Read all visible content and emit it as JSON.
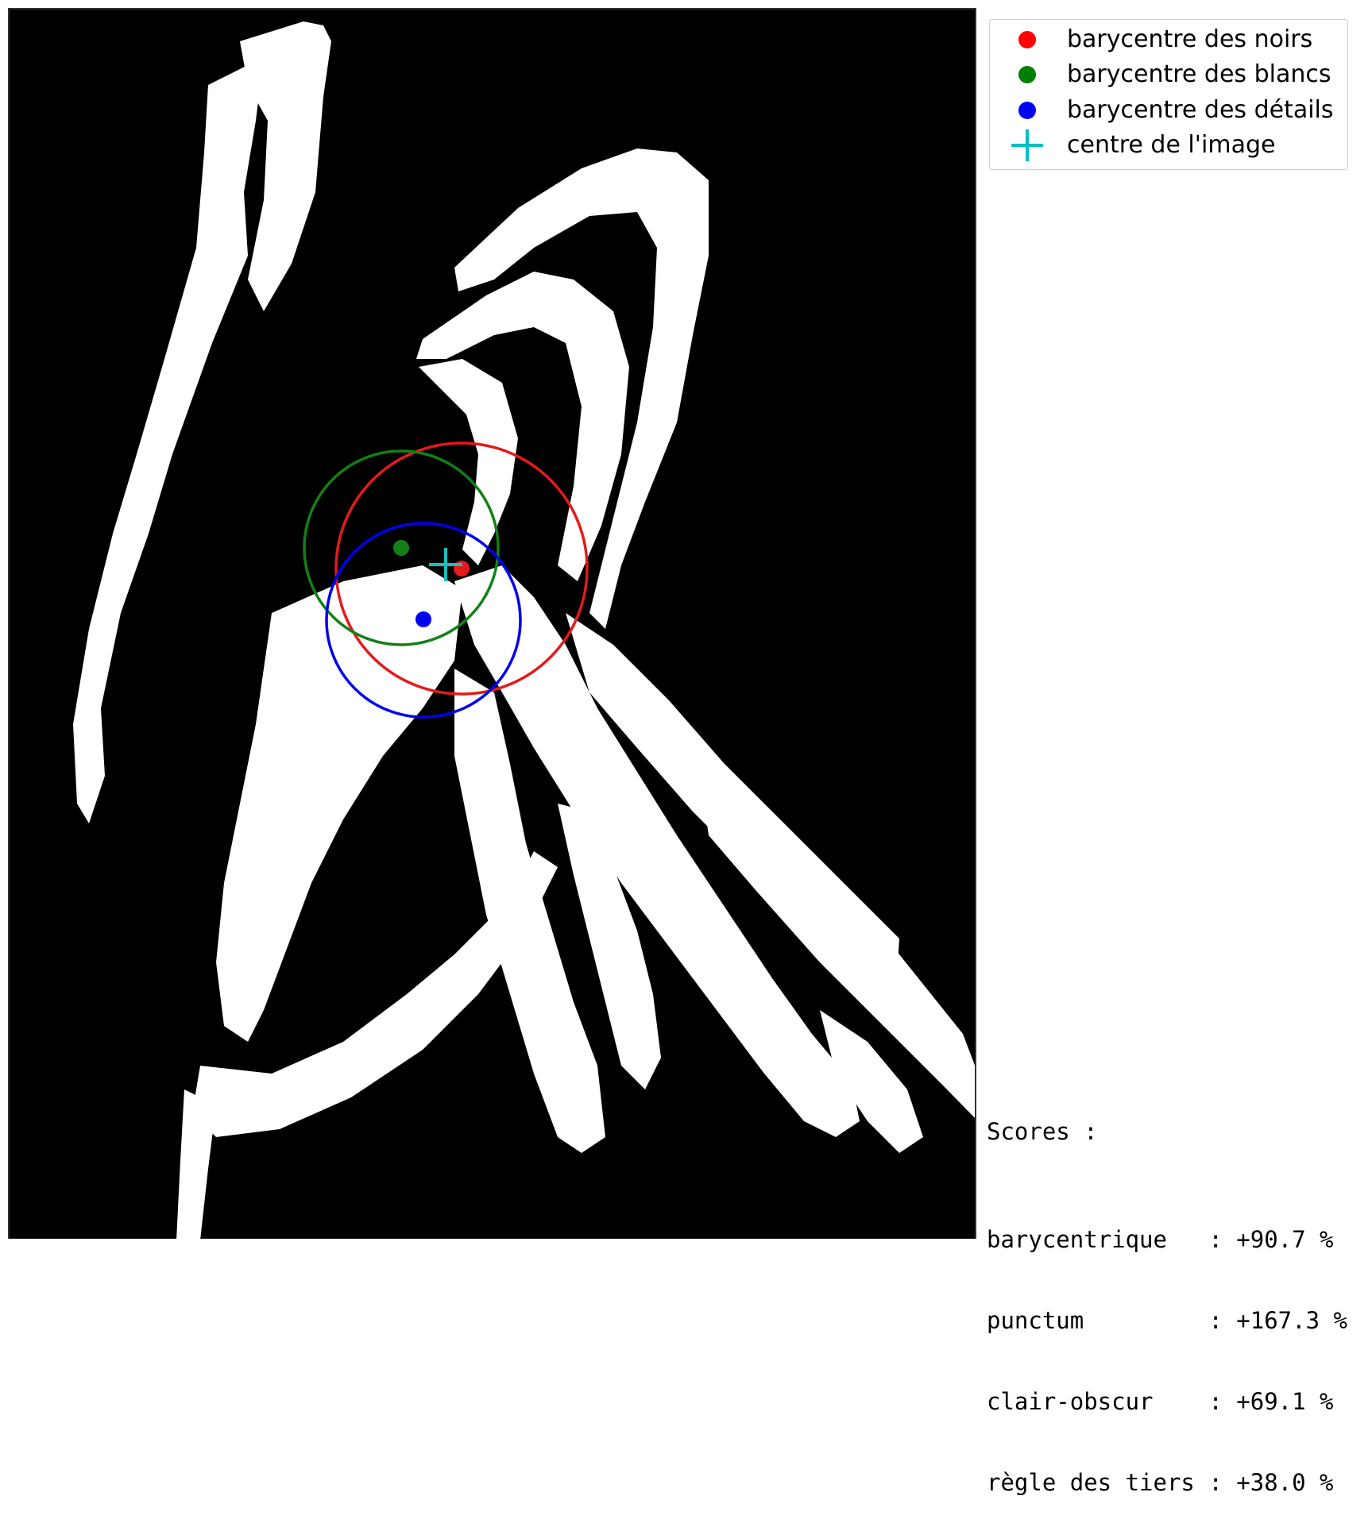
{
  "figure": {
    "image_description_icon": "calligraphy-brush-strokes",
    "background_color": "#000000",
    "stroke_color": "#ffffff",
    "markers": {
      "noirs": {
        "color": "#e41a1c"
      },
      "blancs": {
        "color": "#138015"
      },
      "details": {
        "color": "#0000ee"
      },
      "centre": {
        "color": "#17bfbf"
      }
    }
  },
  "legend": {
    "items": [
      {
        "label": "barycentre des noirs",
        "icon": "red-dot-icon",
        "color": "#ff0000"
      },
      {
        "label": "barycentre des blancs",
        "icon": "green-dot-icon",
        "color": "#008000"
      },
      {
        "label": "barycentre des détails",
        "icon": "blue-dot-icon",
        "color": "#0000ff"
      },
      {
        "label": "centre de l'image",
        "icon": "cyan-plus-icon",
        "color": "#00bfbf"
      }
    ]
  },
  "scores": {
    "title": "Scores :",
    "rows": [
      {
        "text": "barycentrique   : +90.7 %"
      },
      {
        "text": "punctum         : +167.3 %"
      },
      {
        "text": "clair-obscur    : +69.1 %"
      },
      {
        "text": "règle des tiers : +38.0 %"
      }
    ]
  }
}
